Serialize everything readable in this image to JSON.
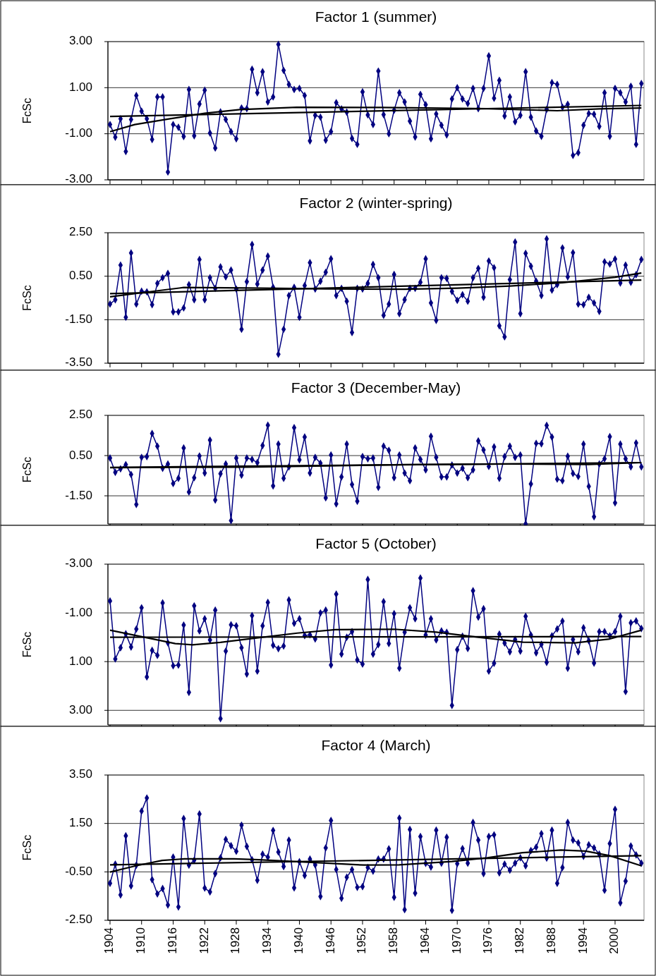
{
  "chart_data": [
    {
      "type": "line",
      "title": "Factor 1 (summer)",
      "ylabel": "FcSc",
      "xlim": [
        1903.6,
        2005.5
      ],
      "xticks": [
        1904,
        1910,
        1916,
        1922,
        1928,
        1934,
        1940,
        1946,
        1952,
        1958,
        1964,
        1970,
        1976,
        1982,
        1988,
        1994,
        2000
      ],
      "ylim": [
        -3,
        3
      ],
      "yticks": [
        {
          "value": -3,
          "label": "-3.00"
        },
        {
          "value": -1,
          "label": "-1.00"
        },
        {
          "value": 1,
          "label": "1.00"
        },
        {
          "value": 3,
          "label": "3.00"
        }
      ],
      "grid": "y",
      "tick_labels": "y",
      "x": [
        1904,
        1905,
        1906,
        1907,
        1908,
        1909,
        1910,
        1911,
        1912,
        1913,
        1914,
        1915,
        1916,
        1917,
        1918,
        1919,
        1920,
        1921,
        1922,
        1923,
        1924,
        1925,
        1926,
        1927,
        1928,
        1929,
        1930,
        1931,
        1932,
        1933,
        1934,
        1935,
        1936,
        1937,
        1938,
        1939,
        1940,
        1941,
        1942,
        1943,
        1944,
        1945,
        1946,
        1947,
        1948,
        1949,
        1950,
        1951,
        1952,
        1953,
        1954,
        1955,
        1956,
        1957,
        1958,
        1959,
        1960,
        1961,
        1962,
        1963,
        1964,
        1965,
        1966,
        1967,
        1968,
        1969,
        1970,
        1971,
        1972,
        1973,
        1974,
        1975,
        1976,
        1977,
        1978,
        1979,
        1980,
        1981,
        1982,
        1983,
        1984,
        1985,
        1986,
        1987,
        1988,
        1989,
        1990,
        1991,
        1992,
        1993,
        1994,
        1995,
        1996,
        1997,
        1998,
        1999,
        2000,
        2001,
        2002,
        2003,
        2004,
        2005
      ],
      "series": [
        {
          "color": "#000080",
          "marker": "diamond",
          "values": [
            -0.6,
            -1.15,
            -0.35,
            -1.77,
            -0.38,
            0.66,
            -0.02,
            -0.35,
            -1.25,
            0.6,
            0.6,
            -2.66,
            -0.6,
            -0.72,
            -1.12,
            0.92,
            -1.09,
            0.29,
            0.89,
            -0.97,
            -1.62,
            -0.05,
            -0.38,
            -0.91,
            -1.22,
            0.12,
            0.09,
            1.8,
            0.78,
            1.69,
            0.38,
            0.6,
            2.88,
            1.75,
            1.14,
            0.92,
            0.97,
            0.66,
            -1.31,
            -0.2,
            -0.28,
            -1.28,
            -0.91,
            0.35,
            0.08,
            -0.06,
            -1.2,
            -1.46,
            0.82,
            -0.18,
            -0.6,
            1.72,
            -0.17,
            -1.0,
            0.02,
            0.78,
            0.38,
            -0.45,
            -1.14,
            0.71,
            0.26,
            -1.22,
            -0.14,
            -0.63,
            -1.05,
            0.51,
            1.0,
            0.51,
            0.31,
            0.97,
            0.09,
            0.97,
            2.38,
            0.54,
            1.32,
            -0.23,
            0.6,
            -0.48,
            -0.2,
            1.69,
            -0.28,
            -0.88,
            -1.11,
            0.06,
            1.22,
            1.14,
            0.15,
            0.28,
            -1.94,
            -1.82,
            -0.63,
            -0.12,
            -0.15,
            -0.68,
            0.78,
            -1.11,
            0.97,
            0.78,
            0.38,
            1.06,
            -1.46,
            1.18
          ]
        },
        {
          "color": "#000000",
          "marker": "none",
          "x": [
            1904,
            2005
          ],
          "values": [
            -0.25,
            0.23
          ]
        },
        {
          "color": "#000000",
          "marker": "none",
          "x": [
            1904,
            1908.7,
            1915.4,
            1922,
            1928.7,
            1939.5,
            1955.5,
            1975.6,
            1989,
            1997,
            2005
          ],
          "values": [
            -0.91,
            -0.6,
            -0.35,
            -0.11,
            0.05,
            0.15,
            0.14,
            0.09,
            0.0,
            0.08,
            0.12
          ]
        }
      ]
    },
    {
      "type": "line",
      "title": "Factor 2 (winter-spring)",
      "ylabel": "FcSc",
      "xlim": [
        1903.6,
        2005.5
      ],
      "xticks": [
        1904,
        1910,
        1916,
        1922,
        1928,
        1934,
        1940,
        1946,
        1952,
        1958,
        1964,
        1970,
        1976,
        1982,
        1988,
        1994,
        2000
      ],
      "ylim": [
        -3.5,
        2.5
      ],
      "yticks": [
        {
          "value": -3.5,
          "label": "-3.50"
        },
        {
          "value": -1.5,
          "label": "-1.50"
        },
        {
          "value": 0.5,
          "label": "0.50"
        },
        {
          "value": 2.5,
          "label": "2.50"
        }
      ],
      "grid": "y",
      "tick_labels": "y",
      "x": [
        1904,
        1905,
        1906,
        1907,
        1908,
        1909,
        1910,
        1911,
        1912,
        1913,
        1914,
        1915,
        1916,
        1917,
        1918,
        1919,
        1920,
        1921,
        1922,
        1923,
        1924,
        1925,
        1926,
        1927,
        1928,
        1929,
        1930,
        1931,
        1932,
        1933,
        1934,
        1935,
        1936,
        1937,
        1938,
        1939,
        1940,
        1941,
        1942,
        1943,
        1944,
        1945,
        1946,
        1947,
        1948,
        1949,
        1950,
        1951,
        1952,
        1953,
        1954,
        1955,
        1956,
        1957,
        1958,
        1959,
        1960,
        1961,
        1962,
        1963,
        1964,
        1965,
        1966,
        1967,
        1968,
        1969,
        1970,
        1971,
        1972,
        1973,
        1974,
        1975,
        1976,
        1977,
        1978,
        1979,
        1980,
        1981,
        1982,
        1983,
        1984,
        1985,
        1986,
        1987,
        1988,
        1989,
        1990,
        1991,
        1992,
        1993,
        1994,
        1995,
        1996,
        1997,
        1998,
        1999,
        2000,
        2001,
        2002,
        2003,
        2004,
        2005
      ],
      "series": [
        {
          "color": "#000080",
          "marker": "diamond",
          "values": [
            -0.78,
            -0.58,
            1.01,
            -1.39,
            1.57,
            -0.78,
            -0.19,
            -0.22,
            -0.81,
            0.17,
            0.43,
            0.63,
            -1.14,
            -1.14,
            -0.96,
            0.11,
            -0.58,
            1.27,
            -0.58,
            0.43,
            -0.06,
            0.93,
            0.47,
            0.78,
            -0.09,
            -1.94,
            0.25,
            1.96,
            0.14,
            0.78,
            1.42,
            -0.01,
            -3.09,
            -1.94,
            -0.39,
            -0.01,
            -1.39,
            0.07,
            1.12,
            -0.09,
            0.27,
            0.68,
            1.3,
            -0.39,
            -0.06,
            -0.65,
            -2.09,
            -0.06,
            -0.09,
            0.17,
            1.04,
            0.43,
            -1.3,
            -0.78,
            0.58,
            -1.22,
            -0.58,
            -0.06,
            -0.06,
            0.22,
            1.3,
            -0.73,
            -1.53,
            0.43,
            0.4,
            -0.2,
            -0.61,
            -0.35,
            -0.65,
            0.43,
            0.86,
            -0.47,
            1.2,
            0.89,
            -1.78,
            -2.29,
            0.34,
            2.07,
            -1.22,
            1.55,
            0.96,
            0.27,
            -0.39,
            2.22,
            -0.14,
            0.11,
            1.8,
            0.47,
            1.58,
            -0.78,
            -0.81,
            -0.47,
            -0.73,
            -1.12,
            1.16,
            1.06,
            1.29,
            0.19,
            1.01,
            0.22,
            0.57,
            1.27
          ]
        },
        {
          "color": "#000000",
          "marker": "none",
          "x": [
            1904,
            2005
          ],
          "values": [
            -0.3,
            0.32
          ]
        },
        {
          "color": "#000000",
          "marker": "none",
          "x": [
            1904,
            1912,
            1918,
            1930,
            1945,
            1960,
            1970,
            1980,
            1990,
            2000,
            2005
          ],
          "values": [
            -0.45,
            -0.2,
            -0.02,
            -0.04,
            -0.08,
            -0.1,
            -0.05,
            0.05,
            0.2,
            0.45,
            0.65
          ]
        }
      ]
    },
    {
      "type": "line",
      "title": "Factor 3 (December-May)",
      "ylabel": "FcSc",
      "xlim": [
        1903.6,
        2005.5
      ],
      "xticks": [
        1904,
        1910,
        1916,
        1922,
        1928,
        1934,
        1940,
        1946,
        1952,
        1958,
        1964,
        1970,
        1976,
        1982,
        1988,
        1994,
        2000
      ],
      "ylim": [
        -2.9,
        2.5
      ],
      "yticks": [
        {
          "value": -1.5,
          "label": "-1.50"
        },
        {
          "value": 0.5,
          "label": "0.50"
        },
        {
          "value": 2.5,
          "label": "2.50"
        }
      ],
      "grid": "y",
      "tick_labels": "y",
      "x": [
        1904,
        1905,
        1906,
        1907,
        1908,
        1909,
        1910,
        1911,
        1912,
        1913,
        1914,
        1915,
        1916,
        1917,
        1918,
        1919,
        1920,
        1921,
        1922,
        1923,
        1924,
        1925,
        1926,
        1927,
        1928,
        1929,
        1930,
        1931,
        1932,
        1933,
        1934,
        1935,
        1936,
        1937,
        1938,
        1939,
        1940,
        1941,
        1942,
        1943,
        1944,
        1945,
        1946,
        1947,
        1948,
        1949,
        1950,
        1951,
        1952,
        1953,
        1954,
        1955,
        1956,
        1957,
        1958,
        1959,
        1960,
        1961,
        1962,
        1963,
        1964,
        1965,
        1966,
        1967,
        1968,
        1969,
        1970,
        1971,
        1972,
        1973,
        1974,
        1975,
        1976,
        1977,
        1978,
        1979,
        1980,
        1981,
        1982,
        1983,
        1984,
        1985,
        1986,
        1987,
        1988,
        1989,
        1990,
        1991,
        1992,
        1993,
        1994,
        1995,
        1996,
        1997,
        1998,
        1999,
        2000,
        2001,
        2002,
        2003,
        2004,
        2005
      ],
      "series": [
        {
          "color": "#000080",
          "marker": "diamond",
          "values": [
            0.38,
            -0.33,
            -0.16,
            0.05,
            -0.44,
            -1.93,
            0.41,
            0.45,
            1.6,
            0.97,
            -0.13,
            0.08,
            -0.89,
            -0.63,
            0.88,
            -1.31,
            -0.6,
            0.48,
            -0.37,
            1.27,
            -1.71,
            -0.4,
            0.08,
            -2.73,
            0.38,
            -0.47,
            0.38,
            0.31,
            0.15,
            1.0,
            2.01,
            -1.01,
            1.07,
            -0.63,
            -0.06,
            1.89,
            0.29,
            1.42,
            -0.37,
            0.41,
            0.12,
            -1.6,
            0.53,
            -1.9,
            -0.56,
            1.07,
            -0.94,
            -1.77,
            0.45,
            0.34,
            0.38,
            -1.08,
            0.97,
            0.76,
            -0.6,
            0.53,
            -0.37,
            -0.75,
            0.88,
            0.31,
            -0.21,
            1.46,
            0.41,
            -0.56,
            -0.56,
            0.03,
            -0.37,
            -0.13,
            -0.6,
            -0.21,
            1.23,
            0.78,
            -0.04,
            0.93,
            -0.63,
            0.45,
            0.97,
            0.41,
            0.53,
            -2.9,
            -0.91,
            1.11,
            1.09,
            2.0,
            1.42,
            -0.67,
            -0.75,
            0.47,
            -0.39,
            -0.54,
            1.07,
            -1.03,
            -2.54,
            0.08,
            0.34,
            1.44,
            -1.85,
            1.07,
            0.34,
            -0.06,
            1.13,
            -0.06
          ]
        },
        {
          "color": "#000000",
          "marker": "none",
          "x": [
            1904,
            2005
          ],
          "values": [
            -0.09,
            0.15
          ]
        },
        {
          "color": "#000000",
          "marker": "none",
          "x": [
            1904,
            1930,
            1960,
            1980,
            1995,
            2005
          ],
          "values": [
            -0.1,
            -0.07,
            0.05,
            0.08,
            0.06,
            0.15
          ]
        }
      ]
    },
    {
      "type": "line",
      "title": "Factor 5 (October)",
      "ylabel": "FcSc",
      "xlim": [
        1903.6,
        2005.5
      ],
      "xticks": [
        1904,
        1910,
        1916,
        1922,
        1928,
        1934,
        1940,
        1946,
        1952,
        1958,
        1964,
        1970,
        1976,
        1982,
        1988,
        1994,
        2000
      ],
      "ylim": [
        3.6,
        -3
      ],
      "yticks": [
        {
          "value": -3,
          "label": "-3.00"
        },
        {
          "value": -1,
          "label": "-1.00"
        },
        {
          "value": 1,
          "label": "1.00"
        },
        {
          "value": 3,
          "label": "3.00"
        }
      ],
      "grid": "y",
      "tick_labels": "y",
      "x": [
        1904,
        1905,
        1906,
        1907,
        1908,
        1909,
        1910,
        1911,
        1912,
        1913,
        1914,
        1915,
        1916,
        1917,
        1918,
        1919,
        1920,
        1921,
        1922,
        1923,
        1924,
        1925,
        1926,
        1927,
        1928,
        1929,
        1930,
        1931,
        1932,
        1933,
        1934,
        1935,
        1936,
        1937,
        1938,
        1939,
        1940,
        1941,
        1942,
        1943,
        1944,
        1945,
        1946,
        1947,
        1948,
        1949,
        1950,
        1951,
        1952,
        1953,
        1954,
        1955,
        1956,
        1957,
        1958,
        1959,
        1960,
        1961,
        1962,
        1963,
        1964,
        1965,
        1966,
        1967,
        1968,
        1969,
        1970,
        1971,
        1972,
        1973,
        1974,
        1975,
        1976,
        1977,
        1978,
        1979,
        1980,
        1981,
        1982,
        1983,
        1984,
        1985,
        1986,
        1987,
        1988,
        1989,
        1990,
        1991,
        1992,
        1993,
        1994,
        1995,
        1996,
        1997,
        1998,
        1999,
        2000,
        2001,
        2002,
        2003,
        2004,
        2005
      ],
      "series": [
        {
          "color": "#000080",
          "marker": "diamond",
          "values": [
            -1.49,
            0.89,
            0.43,
            -0.14,
            0.4,
            -0.34,
            -1.21,
            1.63,
            0.54,
            0.74,
            -1.41,
            0.23,
            1.17,
            1.14,
            -0.5,
            2.26,
            -1.29,
            -0.26,
            -0.76,
            0.11,
            -1.11,
            3.34,
            0.57,
            -0.51,
            -0.47,
            0.43,
            1.51,
            -0.89,
            1.39,
            -0.47,
            -1.43,
            0.33,
            0.47,
            0.36,
            -1.53,
            -0.57,
            -0.76,
            -0.07,
            -0.1,
            0.07,
            -1.0,
            -1.11,
            1.14,
            -1.77,
            0.69,
            0.0,
            -0.23,
            0.93,
            1.1,
            -2.37,
            0.69,
            0.3,
            -1.46,
            0.26,
            -0.97,
            1.27,
            -0.21,
            -1.21,
            -0.76,
            -2.43,
            -0.09,
            -0.76,
            0.11,
            -0.26,
            -0.2,
            2.8,
            0.51,
            -0.04,
            0.46,
            -1.91,
            -0.83,
            -1.17,
            1.39,
            1.07,
            -0.13,
            0.24,
            0.6,
            0.09,
            0.57,
            -0.86,
            -0.09,
            0.64,
            0.29,
            1.03,
            -0.06,
            -0.34,
            -0.66,
            1.27,
            0.09,
            0.6,
            -0.39,
            0.14,
            1.06,
            -0.23,
            -0.23,
            -0.06,
            -0.23,
            -0.86,
            2.23,
            -0.59,
            -0.67,
            -0.36
          ]
        },
        {
          "color": "#000000",
          "marker": "none",
          "x": [
            1904,
            2005
          ],
          "values": [
            0.0,
            -0.03
          ]
        },
        {
          "color": "#000000",
          "marker": "none",
          "x": [
            1904,
            1916.4,
            1919.7,
            1925,
            1933,
            1939.6,
            1946.8,
            1958,
            1966,
            1974,
            1982.5,
            1992.4,
            1999,
            2005
          ],
          "values": [
            -0.29,
            0.26,
            0.31,
            0.21,
            0.0,
            -0.17,
            -0.31,
            -0.33,
            -0.21,
            0.0,
            0.2,
            0.23,
            0.07,
            -0.29
          ]
        }
      ]
    },
    {
      "type": "line",
      "title": "Factor 4 (March)",
      "ylabel": "FcSc",
      "xlim": [
        1903.6,
        2005.5
      ],
      "xticks": [
        1904,
        1910,
        1916,
        1922,
        1928,
        1934,
        1940,
        1946,
        1952,
        1958,
        1964,
        1970,
        1976,
        1982,
        1988,
        1994,
        2000
      ],
      "ylim": [
        -2.5,
        3.5
      ],
      "yticks": [
        {
          "value": -2.5,
          "label": "-2.50"
        },
        {
          "value": -0.5,
          "label": "-0.50"
        },
        {
          "value": 1.5,
          "label": "1.50"
        },
        {
          "value": 3.5,
          "label": "3.50"
        }
      ],
      "grid": "y",
      "x": [
        1904,
        1905,
        1906,
        1907,
        1908,
        1909,
        1910,
        1911,
        1912,
        1913,
        1914,
        1915,
        1916,
        1917,
        1918,
        1919,
        1920,
        1921,
        1922,
        1923,
        1924,
        1925,
        1926,
        1927,
        1928,
        1929,
        1930,
        1931,
        1932,
        1933,
        1934,
        1935,
        1936,
        1937,
        1938,
        1939,
        1940,
        1941,
        1942,
        1943,
        1944,
        1945,
        1946,
        1947,
        1948,
        1949,
        1950,
        1951,
        1952,
        1953,
        1954,
        1955,
        1956,
        1957,
        1958,
        1959,
        1960,
        1961,
        1962,
        1963,
        1964,
        1965,
        1966,
        1967,
        1968,
        1969,
        1970,
        1971,
        1972,
        1973,
        1974,
        1975,
        1976,
        1977,
        1978,
        1979,
        1980,
        1981,
        1982,
        1983,
        1984,
        1985,
        1986,
        1987,
        1988,
        1989,
        1990,
        1991,
        1992,
        1993,
        1994,
        1995,
        1996,
        1997,
        1998,
        1999,
        2000,
        2001,
        2002,
        2003,
        2004,
        2005
      ],
      "series": [
        {
          "color": "#000080",
          "marker": "diamond",
          "values": [
            -0.97,
            -0.18,
            -1.45,
            0.99,
            -1.08,
            -0.22,
            2.01,
            2.55,
            -0.82,
            -1.41,
            -1.19,
            -1.87,
            0.11,
            -1.95,
            1.7,
            -0.22,
            -0.02,
            1.89,
            -1.17,
            -1.33,
            -0.57,
            0.08,
            0.84,
            0.58,
            0.35,
            1.43,
            0.55,
            0.0,
            -0.85,
            0.23,
            0.11,
            1.21,
            0.32,
            -0.28,
            0.81,
            -1.16,
            -0.08,
            -0.65,
            0.03,
            -0.21,
            -1.52,
            0.49,
            1.62,
            -0.4,
            -1.59,
            -0.72,
            -0.41,
            -1.14,
            -1.11,
            -0.32,
            -0.47,
            0.03,
            0.03,
            0.45,
            -1.55,
            1.72,
            -2.06,
            1.25,
            -1.38,
            0.96,
            -0.15,
            -0.3,
            1.22,
            -0.14,
            0.93,
            -2.09,
            -0.16,
            0.46,
            -0.14,
            1.54,
            0.81,
            -0.57,
            0.96,
            1.03,
            -0.54,
            -0.18,
            -0.43,
            -0.14,
            0.08,
            -0.25,
            0.38,
            0.52,
            1.08,
            0.07,
            1.22,
            -0.97,
            -0.32,
            1.54,
            0.81,
            0.7,
            0.14,
            0.62,
            0.49,
            0.23,
            -1.26,
            0.67,
            2.08,
            -1.78,
            -0.88,
            0.57,
            0.2,
            -0.14
          ]
        },
        {
          "color": "#000000",
          "marker": "none",
          "x": [
            1904,
            2005
          ],
          "values": [
            -0.21,
            0.17
          ]
        },
        {
          "color": "#000000",
          "marker": "none",
          "x": [
            1904,
            1908.9,
            1913.9,
            1918.2,
            1927.6,
            1932.3,
            1942.3,
            1952.3,
            1959,
            1969,
            1975.7,
            1982.4,
            1989.7,
            1994.4,
            1999,
            2005
          ],
          "values": [
            -0.51,
            -0.25,
            -0.03,
            0.04,
            0.04,
            0.0,
            -0.11,
            -0.22,
            -0.21,
            -0.07,
            0.08,
            0.29,
            0.4,
            0.36,
            0.17,
            -0.25
          ]
        }
      ]
    }
  ]
}
